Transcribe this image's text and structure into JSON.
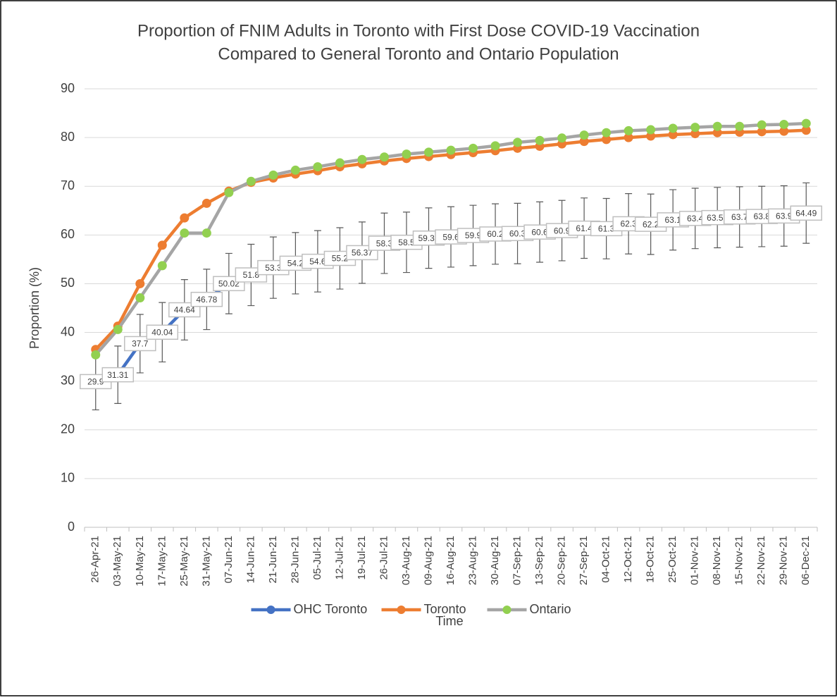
{
  "chart_data": {
    "type": "line",
    "title": [
      "Proportion of FNIM Adults in Toronto with First Dose COVID-19 Vaccination",
      "Compared to General Toronto and Ontario Population"
    ],
    "x_label": "Time",
    "y_label": "Proportion (%)",
    "categories": [
      "26-Apr-21",
      "03-May-21",
      "10-May-21",
      "17-May-21",
      "25-May-21",
      "31-May-21",
      "07-Jun-21",
      "14-Jun-21",
      "21-Jun-21",
      "28-Jun-21",
      "05-Jul-21",
      "12-Jul-21",
      "19-Jul-21",
      "26-Jul-21",
      "03-Aug-21",
      "09-Aug-21",
      "16-Aug-21",
      "23-Aug-21",
      "30-Aug-21",
      "07-Sep-21",
      "13-Sep-21",
      "20-Sep-21",
      "27-Sep-21",
      "04-Oct-21",
      "12-Oct-21",
      "18-Oct-21",
      "25-Oct-21",
      "01-Nov-21",
      "08-Nov-21",
      "15-Nov-21",
      "22-Nov-21",
      "29-Nov-21",
      "06-Dec-21"
    ],
    "series": [
      {
        "name": "OHC Toronto",
        "color": "#4472c4",
        "marker_color": "#4472c4",
        "values": [
          29.9,
          31.31,
          37.7,
          40.04,
          44.64,
          46.78,
          50.02,
          51.8,
          53.3,
          54.2,
          54.6,
          55.2,
          56.37,
          58.3,
          58.5,
          59.36,
          59.6,
          59.9,
          60.2,
          60.3,
          60.6,
          60.9,
          61.4,
          61.3,
          62.3,
          62.2,
          63.1,
          63.4,
          63.57,
          63.7,
          63.8,
          63.9,
          64.49
        ],
        "errors": [
          5.8,
          5.9,
          6.0,
          6.1,
          6.2,
          6.2,
          6.2,
          6.3,
          6.3,
          6.3,
          6.3,
          6.3,
          6.3,
          6.2,
          6.2,
          6.2,
          6.2,
          6.2,
          6.2,
          6.2,
          6.2,
          6.2,
          6.2,
          6.2,
          6.2,
          6.2,
          6.2,
          6.2,
          6.2,
          6.2,
          6.2,
          6.2,
          6.2
        ]
      },
      {
        "name": "Toronto",
        "color": "#ed7d31",
        "marker_color": "#ed7d31",
        "values": [
          36.5,
          41.3,
          50.0,
          57.9,
          63.5,
          66.5,
          69.0,
          70.8,
          71.7,
          72.5,
          73.2,
          74.0,
          74.6,
          75.2,
          75.7,
          76.1,
          76.5,
          76.9,
          77.3,
          77.8,
          78.2,
          78.7,
          79.2,
          79.6,
          80.0,
          80.3,
          80.6,
          80.8,
          81.0,
          81.1,
          81.2,
          81.3,
          81.5
        ]
      },
      {
        "name": "Ontario",
        "color": "#a5a5a5",
        "marker_color": "#92d050",
        "values": [
          35.4,
          40.6,
          47.1,
          53.7,
          60.4,
          60.4,
          68.7,
          71.0,
          72.3,
          73.3,
          74.0,
          74.8,
          75.5,
          76.0,
          76.6,
          77.0,
          77.4,
          77.8,
          78.3,
          79.0,
          79.4,
          79.9,
          80.5,
          81.0,
          81.4,
          81.6,
          81.9,
          82.1,
          82.3,
          82.3,
          82.6,
          82.7,
          82.9
        ]
      }
    ],
    "ylim": [
      0,
      90
    ],
    "yticks": [
      0,
      10,
      20,
      30,
      40,
      50,
      60,
      70,
      80,
      90
    ],
    "grid": true,
    "legend": "bottom"
  }
}
